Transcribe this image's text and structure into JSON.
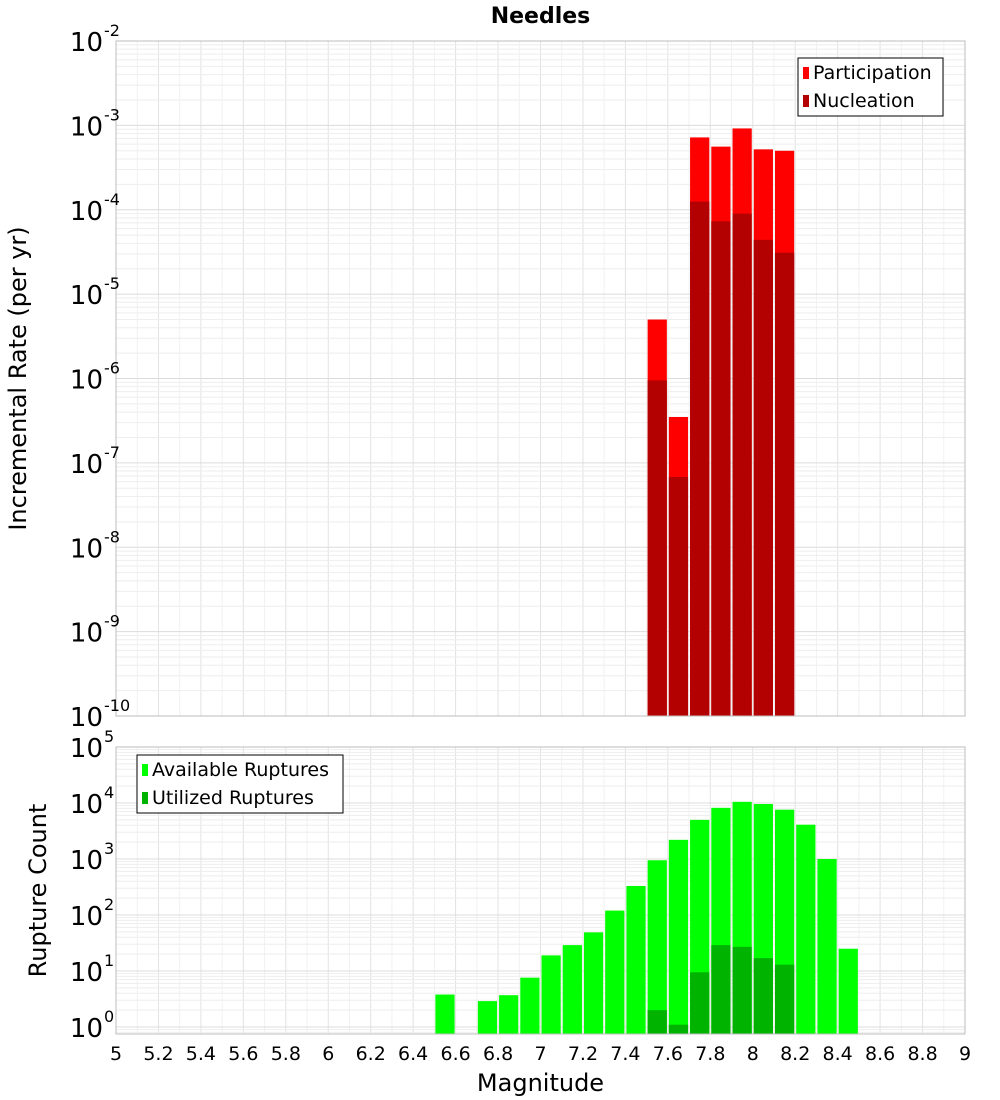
{
  "chart_data": [
    {
      "type": "bar",
      "title": "Needles",
      "ylabel": "Incremental Rate (per yr)",
      "xlabel": "",
      "y_scale": "log",
      "ylim": [
        1e-10,
        0.01
      ],
      "xlim": [
        5,
        9
      ],
      "y_tick_exponents": [
        "-2",
        "-3",
        "-4",
        "-5",
        "-6",
        "-7",
        "-8",
        "-9",
        "-10"
      ],
      "y_tick_base": "10",
      "grid": true,
      "legend_position": "top-right",
      "bin_width": 0.1,
      "series": [
        {
          "name": "Participation",
          "color": "#ff0000",
          "x": [
            7.55,
            7.65,
            7.75,
            7.85,
            7.95,
            8.05,
            8.15
          ],
          "values": [
            5e-06,
            3.5e-07,
            0.00072,
            0.00056,
            0.00092,
            0.00052,
            0.0005
          ]
        },
        {
          "name": "Nucleation",
          "color": "#b30000",
          "x": [
            7.55,
            7.65,
            7.75,
            7.85,
            7.95,
            8.05,
            8.15
          ],
          "values": [
            9.5e-07,
            6.8e-08,
            0.000125,
            7.3e-05,
            9e-05,
            4.4e-05,
            3.1e-05
          ]
        }
      ]
    },
    {
      "type": "bar",
      "title": "",
      "ylabel": "Rupture Count",
      "xlabel": "Magnitude",
      "y_scale": "log",
      "ylim": [
        0.75,
        100000
      ],
      "xlim": [
        5,
        9
      ],
      "x_ticks": [
        "5",
        "5.2",
        "5.4",
        "5.6",
        "5.8",
        "6",
        "6.2",
        "6.4",
        "6.6",
        "6.8",
        "7",
        "7.2",
        "7.4",
        "7.6",
        "7.8",
        "8",
        "8.2",
        "8.4",
        "8.6",
        "8.8",
        "9"
      ],
      "y_tick_exponents": [
        "5",
        "4",
        "3",
        "2",
        "1",
        "0"
      ],
      "y_tick_base": "10",
      "grid": true,
      "legend_position": "top-left",
      "bin_width": 0.1,
      "series": [
        {
          "name": "Available Ruptures",
          "color": "#00ff00",
          "x": [
            6.55,
            6.75,
            6.85,
            6.95,
            7.05,
            7.15,
            7.25,
            7.35,
            7.45,
            7.55,
            7.65,
            7.75,
            7.85,
            7.95,
            8.05,
            8.15,
            8.25,
            8.35,
            8.45
          ],
          "values": [
            3.8,
            2.9,
            3.7,
            7.6,
            19,
            29,
            49,
            120,
            330,
            950,
            2200,
            5000,
            8200,
            10500,
            9600,
            7600,
            4100,
            1000,
            25
          ]
        },
        {
          "name": "Utilized Ruptures",
          "color": "#00b300",
          "x": [
            7.55,
            7.65,
            7.75,
            7.85,
            7.95,
            8.05,
            8.15
          ],
          "values": [
            2,
            1.1,
            9.5,
            29,
            27,
            17,
            13
          ]
        }
      ]
    }
  ]
}
